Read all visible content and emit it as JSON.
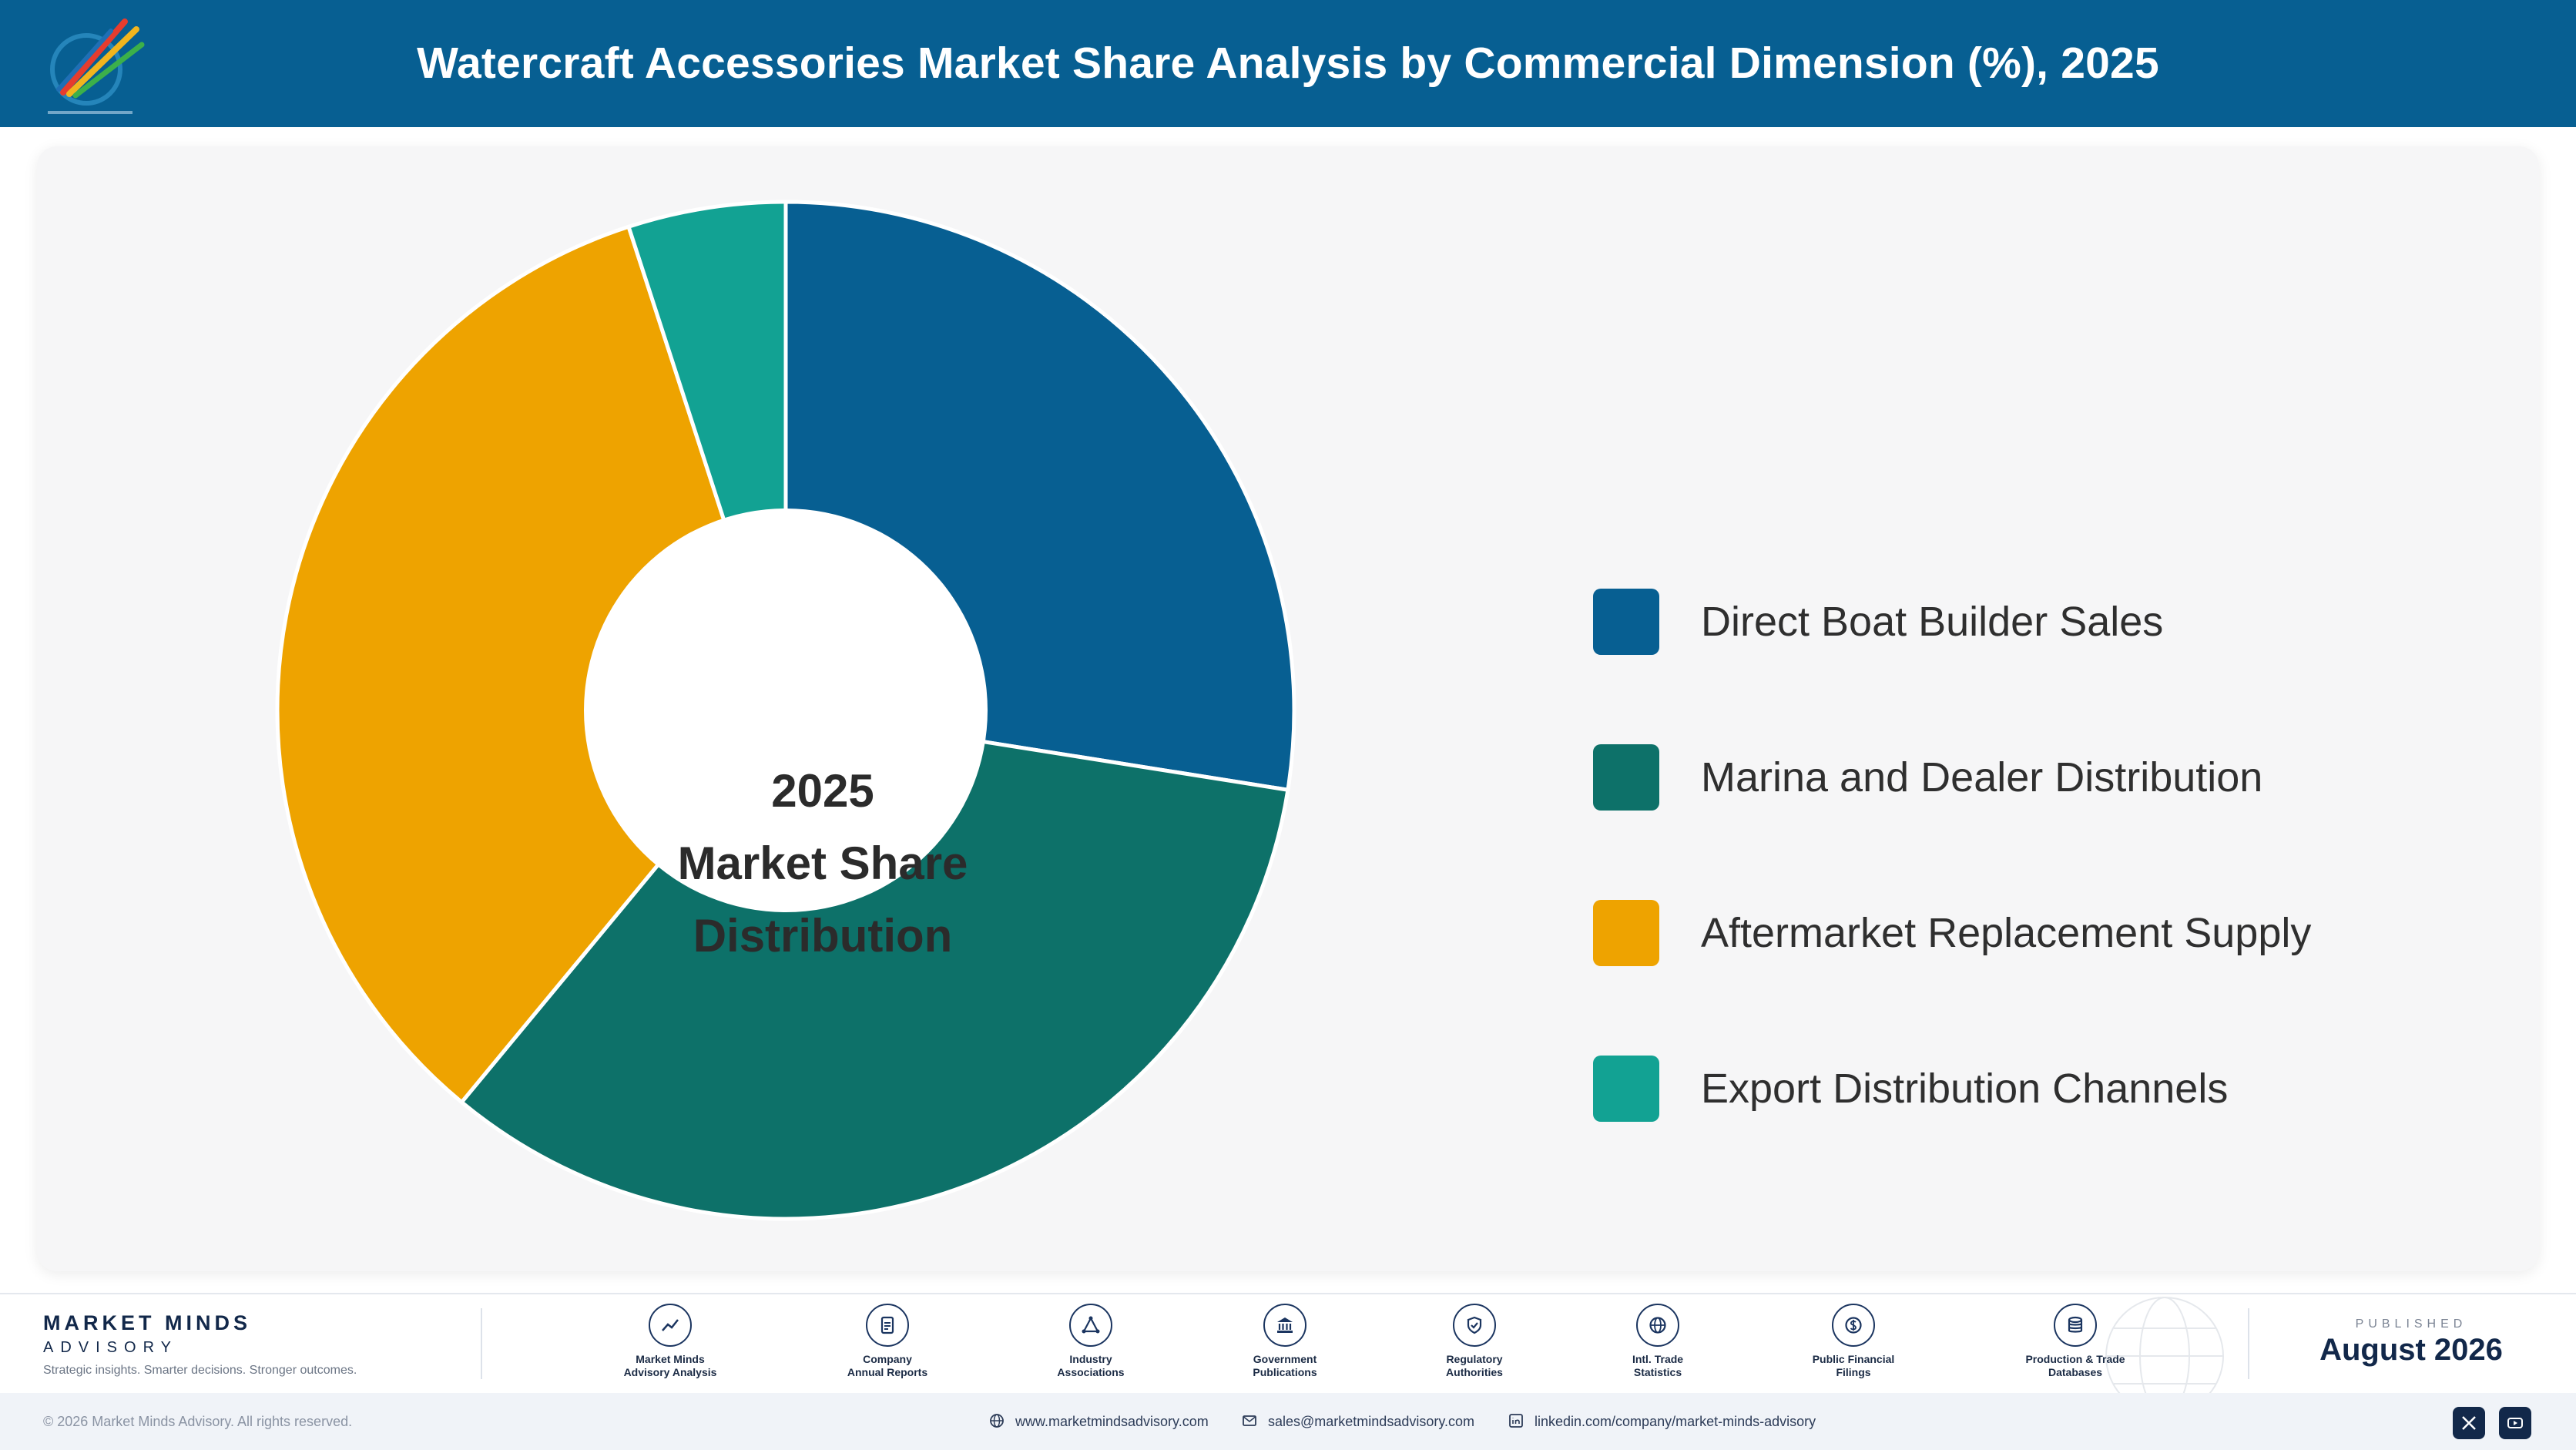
{
  "header": {
    "title": "Watercraft Accessories Market Share Analysis by Commercial Dimension (%), 2025"
  },
  "colors": {
    "header_bg": "#075f92",
    "direct_boat_builder": "#075f92",
    "marina_dealer": "#0d7169",
    "aftermarket": "#eea300",
    "export": "#12a293"
  },
  "chart_data": {
    "type": "pie",
    "donut": true,
    "center_label": [
      "2025",
      "Market Share",
      "Distribution"
    ],
    "categories": [
      "Direct Boat Builder Sales",
      "Marina and Dealer Distribution",
      "Aftermarket Replacement Supply",
      "Export Distribution Channels"
    ],
    "values": [
      27.5,
      33.5,
      34.0,
      5.0
    ],
    "colors": [
      "#075f92",
      "#0d7169",
      "#eea300",
      "#12a293"
    ],
    "legend_position": "right"
  },
  "footer": {
    "brand_name": "MARKET MINDS",
    "brand_sub": "ADVISORY",
    "tagline": "Strategic insights. Smarter decisions. Stronger outcomes.",
    "sources": [
      {
        "label": "Market Minds\nAdvisory Analysis",
        "icon": "trend-icon"
      },
      {
        "label": "Company\nAnnual Reports",
        "icon": "document-icon"
      },
      {
        "label": "Industry\nAssociations",
        "icon": "network-icon"
      },
      {
        "label": "Government\nPublications",
        "icon": "government-icon"
      },
      {
        "label": "Regulatory\nAuthorities",
        "icon": "shield-icon"
      },
      {
        "label": "Intl. Trade\nStatistics",
        "icon": "globe-icon"
      },
      {
        "label": "Public Financial\nFilings",
        "icon": "currency-icon"
      },
      {
        "label": "Production & Trade\nDatabases",
        "icon": "database-icon"
      }
    ],
    "published_label": "PUBLISHED",
    "published_date": "August 2026"
  },
  "bottombar": {
    "copyright": "© 2026 Market Minds Advisory. All rights reserved.",
    "website": "www.marketmindsadvisory.com",
    "email": "sales@marketmindsadvisory.com",
    "linkedin": "linkedin.com/company/market-minds-advisory"
  }
}
